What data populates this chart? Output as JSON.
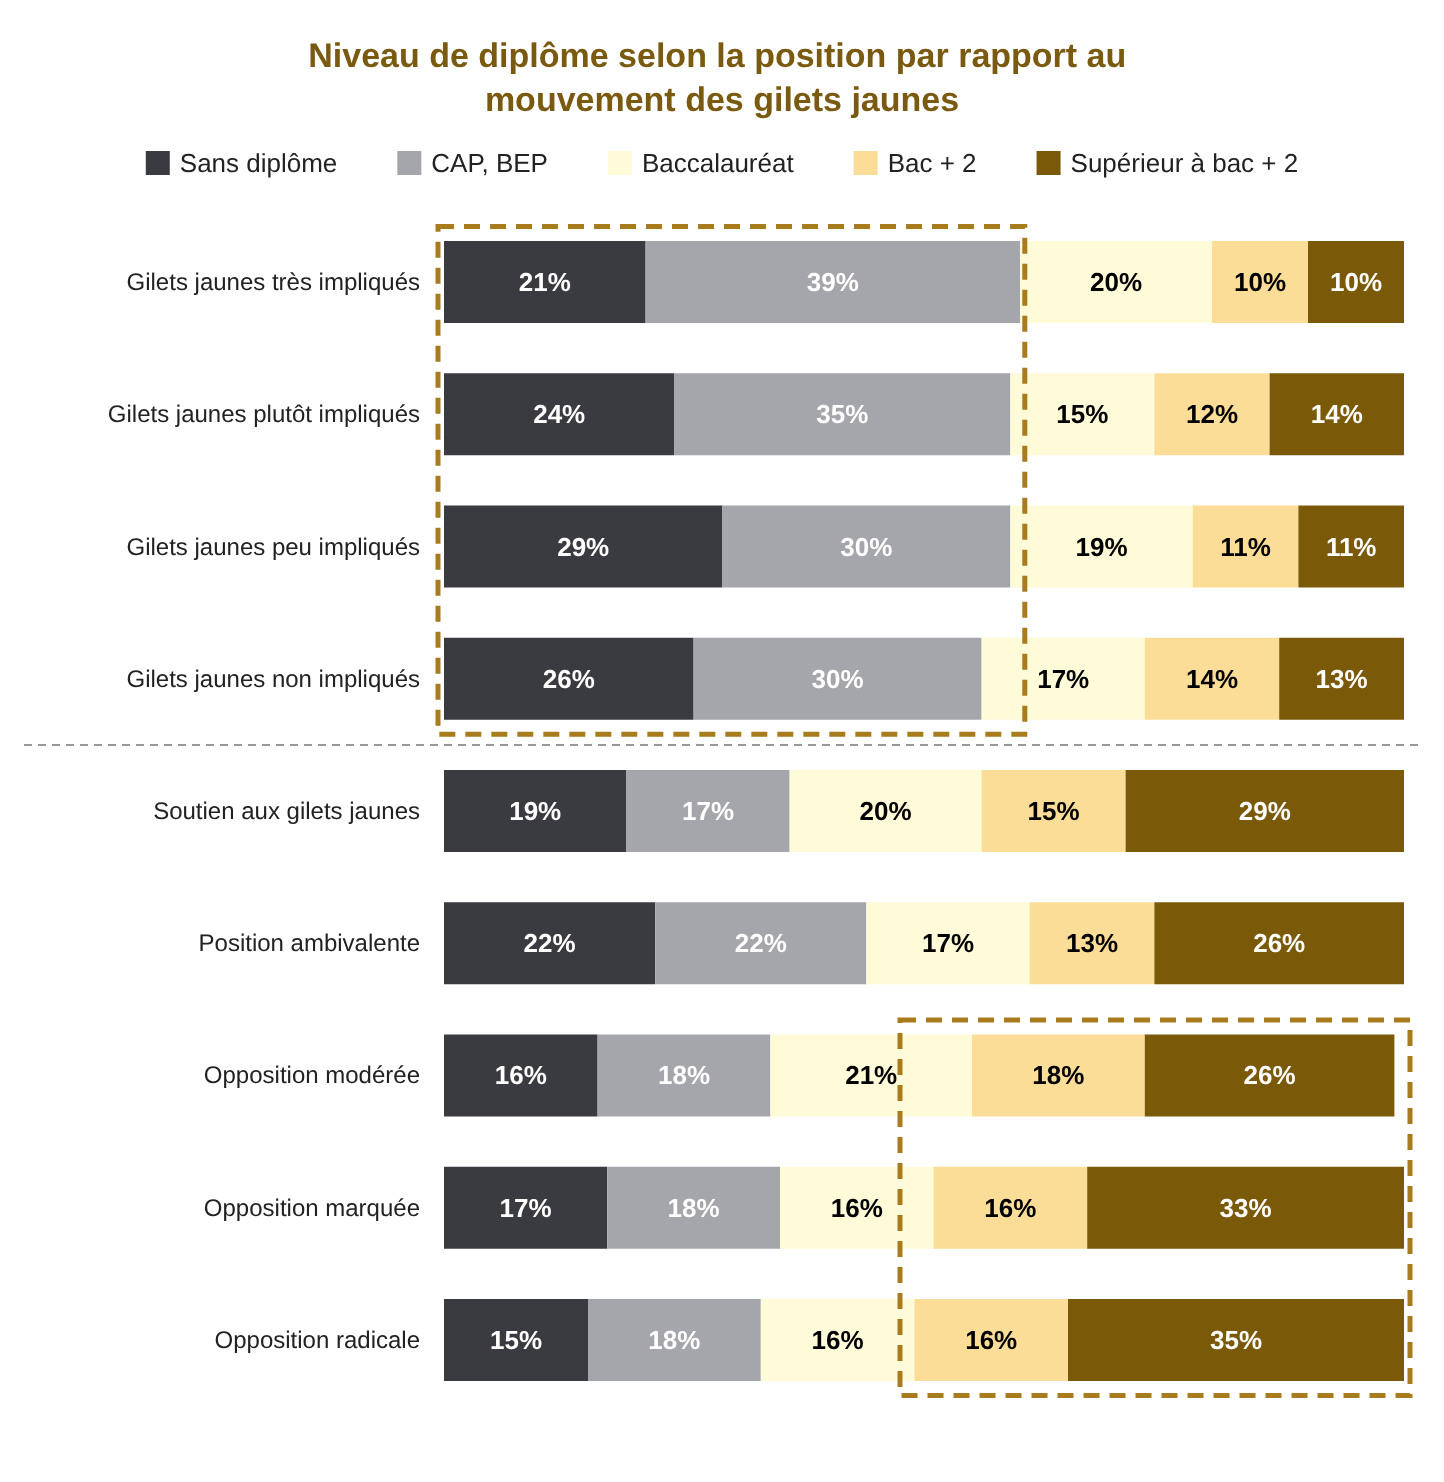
{
  "chart_data": {
    "type": "bar",
    "orientation": "horizontal",
    "stacked": true,
    "title": "Niveau de diplôme selon la position par rapport au mouvement des gilets jaunes",
    "categories": [
      "Gilets jaunes très impliqués",
      "Gilets jaunes plutôt impliqués",
      "Gilets jaunes peu impliqués",
      "Gilets jaunes non impliqués",
      "Soutien aux gilets jaunes",
      "Position ambivalente",
      "Opposition modérée",
      "Opposition marquée",
      "Opposition radicale"
    ],
    "series": [
      {
        "name": "Sans diplôme",
        "color": "#3a3a41",
        "values": [
          21,
          24,
          29,
          26,
          19,
          22,
          16,
          17,
          15
        ],
        "value_labels": [
          "21%",
          "24%",
          "29%",
          "26%",
          "19%",
          "22%",
          "16%",
          "17%",
          "15%"
        ]
      },
      {
        "name": "CAP, BEP",
        "color": "#a5a5ac",
        "values": [
          39,
          35,
          30,
          30,
          17,
          22,
          18,
          18,
          18
        ],
        "value_labels": [
          "39%",
          "35%",
          "30%",
          "30%",
          "17%",
          "22%",
          "18%",
          "18%",
          "18%"
        ]
      },
      {
        "name": "Baccalauréat",
        "color": "#fffad8",
        "values": [
          20,
          15,
          19,
          17,
          20,
          17,
          21,
          16,
          16
        ],
        "value_labels": [
          "20%",
          "15%",
          "19%",
          "17%",
          "20%",
          "17%",
          "21%",
          "16%",
          "16%"
        ]
      },
      {
        "name": "Bac + 2",
        "color": "#fcdd98",
        "values": [
          10,
          12,
          11,
          14,
          15,
          13,
          18,
          16,
          16
        ],
        "value_labels": [
          "10%",
          "12%",
          "11%",
          "14%",
          "15%",
          "13%",
          "18%",
          "16%",
          "16%"
        ]
      },
      {
        "name": "Supérieur à bac + 2",
        "color": "#7a5908",
        "values": [
          10,
          14,
          11,
          13,
          29,
          26,
          26,
          33,
          35
        ],
        "value_labels": [
          "10%",
          "14%",
          "11%",
          "13%",
          "29%",
          "26%",
          "26%",
          "33%",
          "35%"
        ]
      }
    ],
    "xlim": [
      0,
      100
    ],
    "tick_labels": "y",
    "legend": "top"
  }
}
